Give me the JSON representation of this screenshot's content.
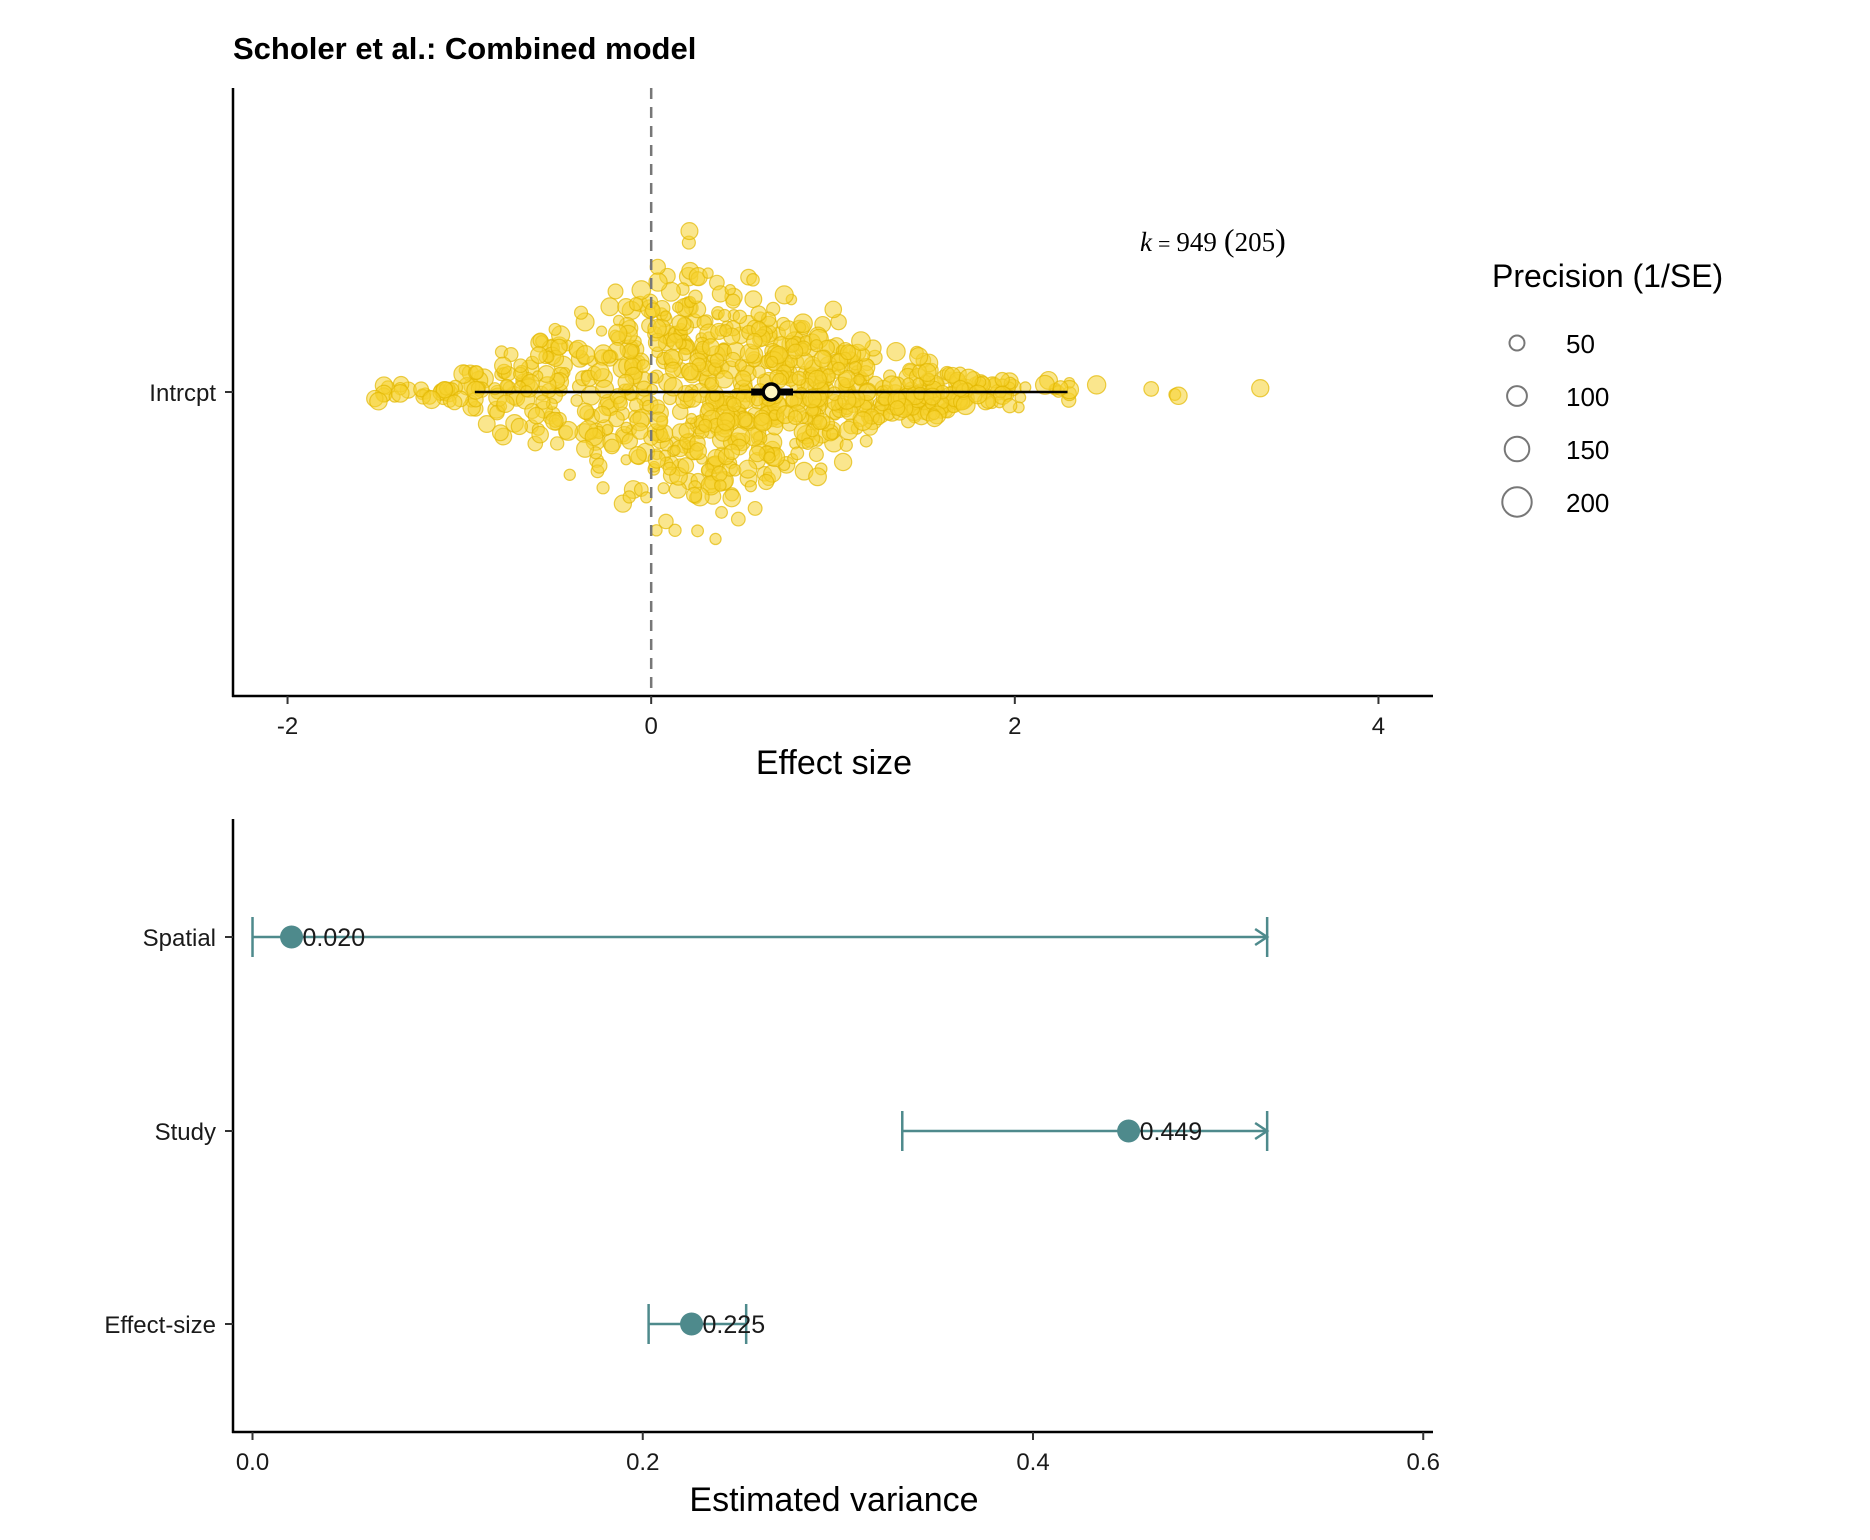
{
  "chart_data": [
    {
      "type": "scatter",
      "title": "Scholer et al.: Combined model",
      "xlabel": "Effect size",
      "ylabel": "",
      "xlim": [
        -2.3,
        4.3
      ],
      "xticks": [
        -2,
        0,
        2,
        4
      ],
      "xtick_labels": [
        "-2",
        "0",
        "2",
        "4"
      ],
      "categories": [
        "Intrcpt"
      ],
      "reference_line": 0,
      "point_color": "#F5D22F",
      "point_stroke": "#E2B800",
      "k_annotation": {
        "k_symbol": "k",
        "equals": "=",
        "value": "949",
        "studies": "205"
      },
      "estimate": {
        "mean": 0.66,
        "ci": [
          0.55,
          0.78
        ],
        "pi": [
          -0.97,
          2.29
        ]
      },
      "n_points": 949,
      "point_x_range": [
        -1.52,
        3.35
      ],
      "outliers": [
        -1.52,
        -1.5,
        -1.38,
        2.45,
        2.75,
        2.88,
        2.9,
        3.35
      ],
      "legend": {
        "title": "Precision (1/SE)",
        "entries": [
          {
            "label": "50",
            "value": 50
          },
          {
            "label": "100",
            "value": 100
          },
          {
            "label": "150",
            "value": 150
          },
          {
            "label": "200",
            "value": 200
          }
        ]
      }
    },
    {
      "type": "scatter",
      "xlabel": "Estimated variance",
      "ylabel": "",
      "xlim": [
        -0.01,
        0.605
      ],
      "xticks": [
        0.0,
        0.2,
        0.4,
        0.6
      ],
      "xtick_labels": [
        "0.0",
        "0.2",
        "0.4",
        "0.6"
      ],
      "color": "#4E8A8C",
      "ci_upper_limit": 0.52,
      "series": [
        {
          "category": "Spatial",
          "value": 0.02,
          "label": "0.020",
          "ci": [
            0.0,
            0.52
          ],
          "truncated": true
        },
        {
          "category": "Study",
          "value": 0.449,
          "label": "0.449",
          "ci": [
            0.333,
            0.52
          ],
          "truncated": true
        },
        {
          "category": "Effect-size",
          "value": 0.225,
          "label": "0.225",
          "ci": [
            0.203,
            0.253
          ],
          "truncated": false
        }
      ]
    }
  ]
}
